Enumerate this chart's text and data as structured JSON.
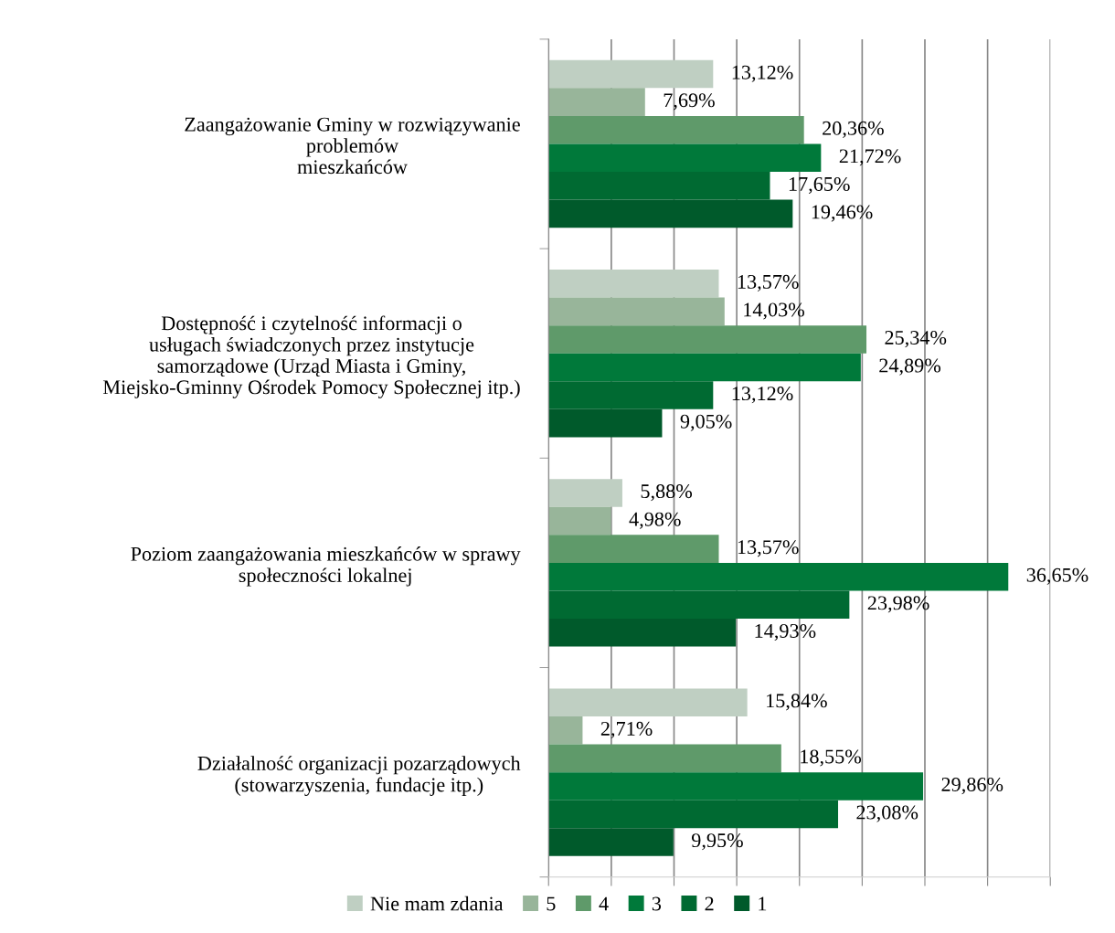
{
  "chart_data": {
    "type": "bar",
    "orientation": "horizontal",
    "categories": [
      "Zaangażowanie Gminy w rozwiązywanie\nproblemów\nmieszkańców",
      "Dostępność i czytelność informacji o\nusługach świadczonych przez instytucje\nsamorządowe (Urząd Miasta i Gminy,\nMiejsko-Gminny Ośrodek Pomocy Społecznej itp.)",
      "Poziom zaangażowania mieszkańców w sprawy\nspołeczności lokalnej",
      "Działalność organizacji pozarządowych\n(stowarzyszenia, fundacje itp.)"
    ],
    "series": [
      {
        "name": "Nie mam zdania",
        "color": "#bfcfc2",
        "values": [
          13.12,
          13.57,
          5.88,
          15.84
        ],
        "value_labels": [
          "13,12%",
          "13,57%",
          "5,88%",
          "15,84%"
        ]
      },
      {
        "name": "5",
        "color": "#98b59a",
        "values": [
          7.69,
          14.03,
          4.98,
          2.71
        ],
        "value_labels": [
          "7,69%",
          "14,03%",
          "4,98%",
          "2,71%"
        ]
      },
      {
        "name": "4",
        "color": "#5f9a6a",
        "values": [
          20.36,
          25.34,
          13.57,
          18.55
        ],
        "value_labels": [
          "20,36%",
          "25,34%",
          "13,57%",
          "18,55%"
        ]
      },
      {
        "name": "3",
        "color": "#00793a",
        "values": [
          21.72,
          24.89,
          36.65,
          29.86
        ],
        "value_labels": [
          "21,72%",
          "24,89%",
          "36,65%",
          "29,86%"
        ]
      },
      {
        "name": "2",
        "color": "#006a32",
        "values": [
          17.65,
          13.12,
          23.98,
          23.08
        ],
        "value_labels": [
          "17,65%",
          "13,12%",
          "23,98%",
          "23,08%"
        ]
      },
      {
        "name": "1",
        "color": "#005a2b",
        "values": [
          19.46,
          9.05,
          14.93,
          9.95
        ],
        "value_labels": [
          "19,46%",
          "9,05%",
          "14,93%",
          "9,95%"
        ]
      }
    ],
    "xlim": [
      0,
      40
    ],
    "xticks": [
      {
        "value": 0,
        "label": null
      },
      {
        "value": 5,
        "label": null
      },
      {
        "value": 10,
        "label": null
      },
      {
        "value": 15,
        "label": null
      },
      {
        "value": 20,
        "label": null
      },
      {
        "value": 25,
        "label": null
      },
      {
        "value": 30,
        "label": null
      },
      {
        "value": 35,
        "label": null
      },
      {
        "value": 40,
        "label": null
      }
    ],
    "tick_labels": "y",
    "grid": "x",
    "legend": "bottom"
  }
}
